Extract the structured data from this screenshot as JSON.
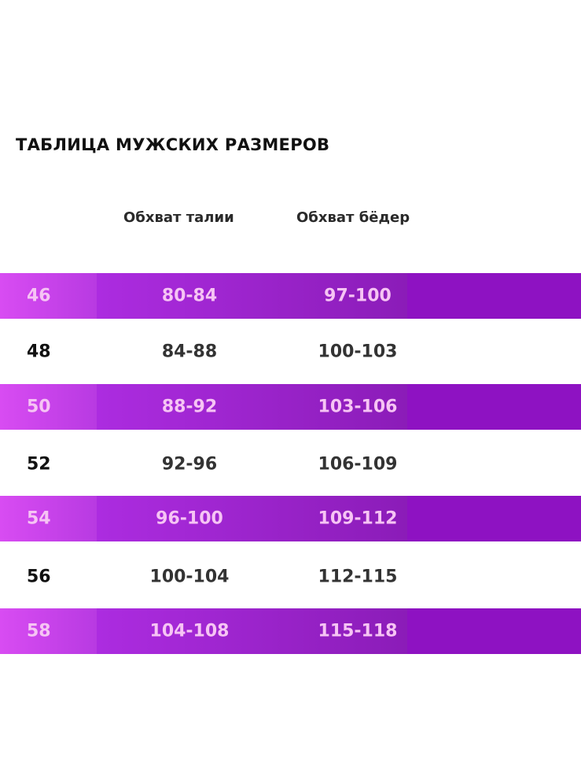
{
  "title": "ТАБЛИЦА МУЖСКИХ РАЗМЕРОВ",
  "headers": {
    "waist": "Обхват талии",
    "hips": "Обхват бёдер"
  },
  "colors": {
    "accent_purple": "#8e12c2",
    "size_cell": "#d84cf2",
    "text_on_purple": "#f6c4f4"
  },
  "rows": [
    {
      "size": "46",
      "waist": "80-84",
      "hips": "97-100"
    },
    {
      "size": "48",
      "waist": "84-88",
      "hips": "100-103"
    },
    {
      "size": "50",
      "waist": "88-92",
      "hips": "103-106"
    },
    {
      "size": "52",
      "waist": "92-96",
      "hips": "106-109"
    },
    {
      "size": "54",
      "waist": "96-100",
      "hips": "109-112"
    },
    {
      "size": "56",
      "waist": "100-104",
      "hips": "112-115"
    },
    {
      "size": "58",
      "waist": "104-108",
      "hips": "115-118"
    }
  ]
}
